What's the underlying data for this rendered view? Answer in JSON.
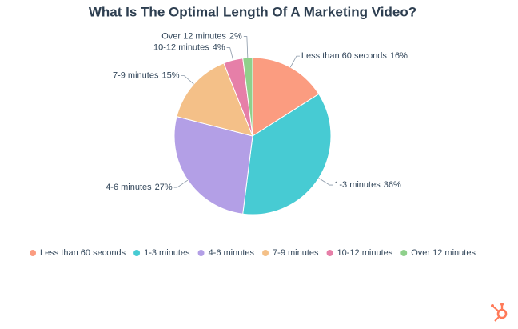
{
  "chart_data": {
    "type": "pie",
    "title": "What Is The Optimal Length Of A Marketing Video?",
    "categories": [
      "Less than 60 seconds",
      "1-3 minutes",
      "4-6 minutes",
      "7-9 minutes",
      "10-12 minutes",
      "Over 12 minutes"
    ],
    "values": [
      16,
      36,
      27,
      15,
      4,
      2
    ],
    "value_labels": [
      "16%",
      "36%",
      "27%",
      "15%",
      "4%",
      "2%"
    ],
    "colors": [
      "#fb9c80",
      "#47cbd3",
      "#b39fe6",
      "#f4c088",
      "#e67fa8",
      "#8fd08b"
    ],
    "legend": "bottom"
  }
}
